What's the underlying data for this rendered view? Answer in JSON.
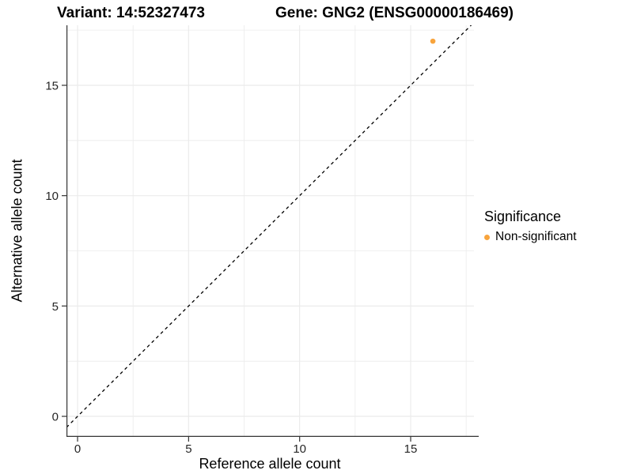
{
  "titles": {
    "left": "Variant: 14:52327473",
    "right": "Gene: GNG2 (ENSG00000186469)"
  },
  "legend": {
    "title": "Significance",
    "items": [
      {
        "label": "Non-significant",
        "color": "#F8A43C"
      }
    ]
  },
  "colors": {
    "background": "#FFFFFF",
    "grid": "#EBEBEB",
    "axis": "#333333",
    "tick_label": "#262626",
    "reference_line": "#000000",
    "point": "#F8A43C"
  },
  "chart_data": {
    "type": "scatter",
    "title": "Variant: 14:52327473 / Gene: GNG2 (ENSG00000186469)",
    "xlabel": "Reference allele count",
    "ylabel": "Alternative allele count",
    "xlim": [
      -0.5,
      17.85
    ],
    "ylim": [
      -0.93,
      17.72
    ],
    "x_major_ticks": [
      0,
      5,
      10,
      15
    ],
    "y_major_ticks": [
      0,
      5,
      10,
      15
    ],
    "x_minor_ticks": [
      2.5,
      7.5,
      12.5,
      17.5
    ],
    "y_minor_ticks": [
      2.5,
      7.5,
      12.5,
      17.5
    ],
    "grid": true,
    "legend_position": "right",
    "series": [
      {
        "name": "Non-significant",
        "color": "#F8A43C",
        "points": [
          {
            "x": 16,
            "y": 17
          }
        ]
      }
    ],
    "reference_line": {
      "slope": 1,
      "intercept": 0,
      "style": "dashed",
      "color": "#000000"
    }
  }
}
